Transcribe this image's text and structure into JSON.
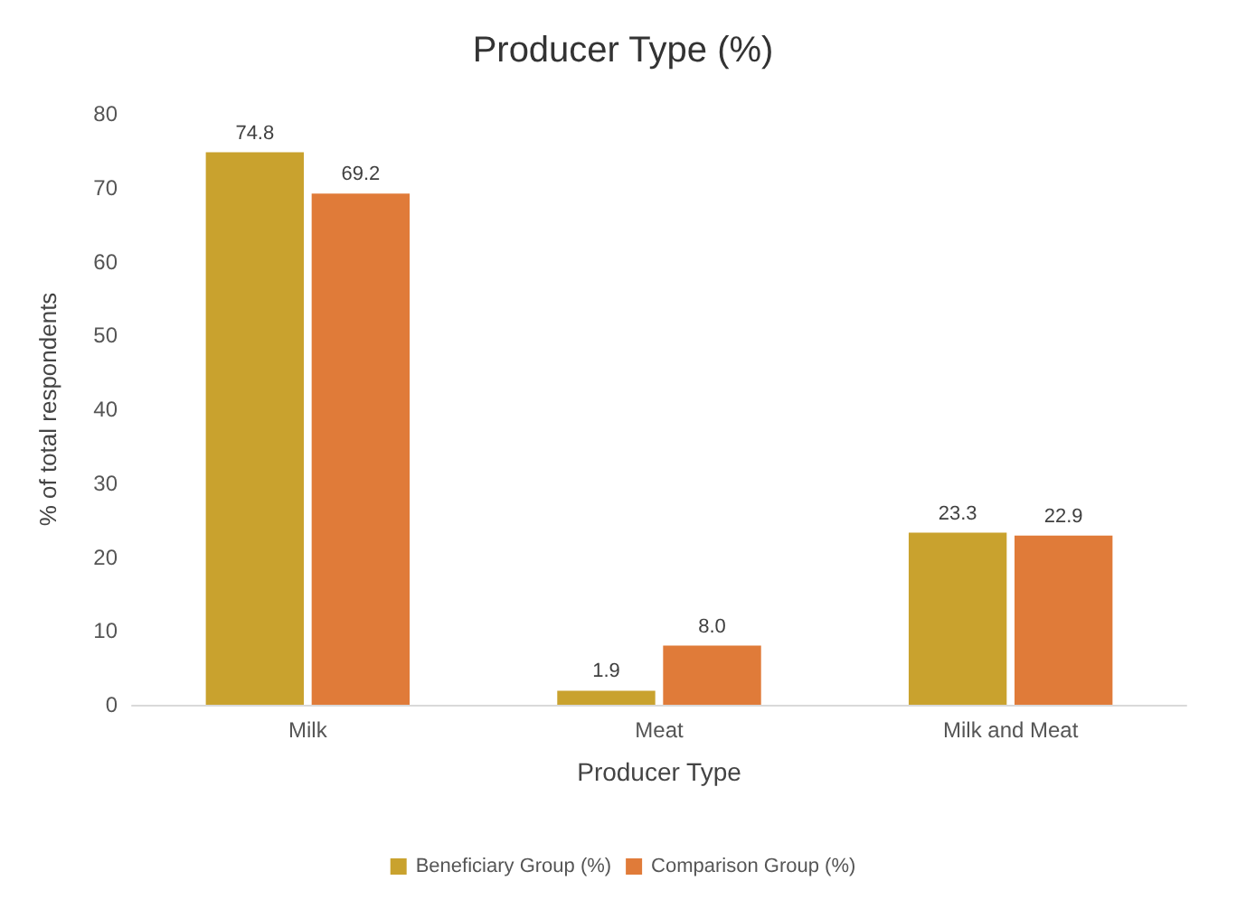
{
  "chart_data": {
    "type": "bar",
    "title": "Producer Type (%)",
    "xlabel": "Producer Type",
    "ylabel": "% of total respondents",
    "categories": [
      "Milk",
      "Meat",
      "Milk and Meat"
    ],
    "series": [
      {
        "name": "Beneficiary Group (%)",
        "color": "#c9a22e",
        "values": [
          74.8,
          1.9,
          23.3
        ],
        "value_labels": [
          "74.8",
          "1.9",
          "23.3"
        ]
      },
      {
        "name": "Comparison Group (%)",
        "color": "#e07b39",
        "values": [
          69.2,
          8.0,
          22.9
        ],
        "value_labels": [
          "69.2",
          "8.0",
          "22.9"
        ]
      }
    ],
    "ylim": [
      0,
      80
    ],
    "yticks": [
      0,
      10,
      20,
      30,
      40,
      50,
      60,
      70,
      80
    ],
    "grid": false,
    "legend": "bottom"
  }
}
